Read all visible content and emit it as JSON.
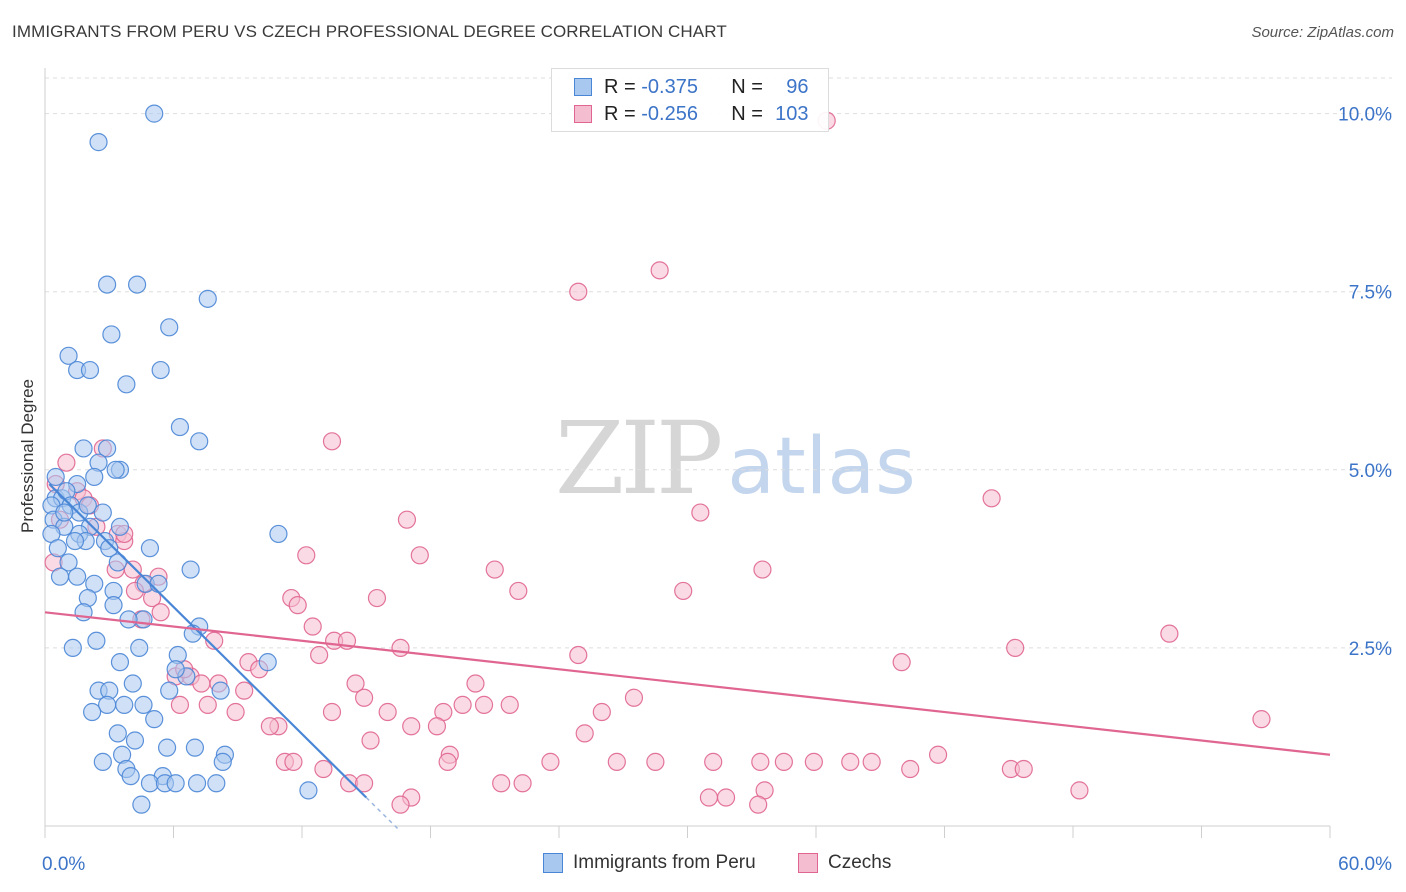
{
  "title": "IMMIGRANTS FROM PERU VS CZECH PROFESSIONAL DEGREE CORRELATION CHART",
  "source": "Source: ZipAtlas.com",
  "watermark": {
    "zip": "ZIP",
    "atlas": "atlas"
  },
  "legend": {
    "r_label": "R =",
    "n_label": "N =",
    "rows": [
      {
        "r": "-0.375",
        "n": "96"
      },
      {
        "r": "-0.256",
        "n": "103"
      }
    ]
  },
  "chart_data": {
    "type": "scatter",
    "title": "IMMIGRANTS FROM PERU VS CZECH PROFESSIONAL DEGREE CORRELATION CHART",
    "xlabel": "",
    "ylabel": "Professional Degree",
    "xlim": [
      0,
      60
    ],
    "ylim": [
      0,
      10.5
    ],
    "x_tick_labels": [
      "0.0%",
      "60.0%"
    ],
    "y_ticks": [
      2.5,
      5.0,
      7.5,
      10.0
    ],
    "y_tick_labels": [
      "2.5%",
      "5.0%",
      "7.5%",
      "10.0%"
    ],
    "grid": true,
    "colors": {
      "peru": "#4a86d6",
      "peru_fill": "#a9c8f0",
      "czech": "#e06590",
      "czech_fill": "#f5bed0"
    },
    "series": [
      {
        "name": "Immigrants from Peru",
        "r": -0.375,
        "n": 96,
        "trend": {
          "x0": 0.2,
          "y0": 4.8,
          "x1": 15.0,
          "y1": 0.4,
          "dash_to_x": 16.5
        },
        "points": [
          [
            5.1,
            10.0
          ],
          [
            2.5,
            9.6
          ],
          [
            2.9,
            7.6
          ],
          [
            4.3,
            7.6
          ],
          [
            7.6,
            7.4
          ],
          [
            3.1,
            6.9
          ],
          [
            5.8,
            7.0
          ],
          [
            1.1,
            6.6
          ],
          [
            1.5,
            6.4
          ],
          [
            2.1,
            6.4
          ],
          [
            3.8,
            6.2
          ],
          [
            5.4,
            6.4
          ],
          [
            6.3,
            5.6
          ],
          [
            7.2,
            5.4
          ],
          [
            1.8,
            5.3
          ],
          [
            2.9,
            5.3
          ],
          [
            3.5,
            5.0
          ],
          [
            2.5,
            5.1
          ],
          [
            2.3,
            4.9
          ],
          [
            1.5,
            4.8
          ],
          [
            0.5,
            4.6
          ],
          [
            0.8,
            4.6
          ],
          [
            1.0,
            4.7
          ],
          [
            0.3,
            4.5
          ],
          [
            1.2,
            4.5
          ],
          [
            0.4,
            4.3
          ],
          [
            1.6,
            4.4
          ],
          [
            2.0,
            4.5
          ],
          [
            2.1,
            4.2
          ],
          [
            0.9,
            4.2
          ],
          [
            1.6,
            4.1
          ],
          [
            0.3,
            4.1
          ],
          [
            1.9,
            4.0
          ],
          [
            2.8,
            4.0
          ],
          [
            3.5,
            4.2
          ],
          [
            3.0,
            3.9
          ],
          [
            4.9,
            3.9
          ],
          [
            1.1,
            3.7
          ],
          [
            3.4,
            3.7
          ],
          [
            6.8,
            3.6
          ],
          [
            0.7,
            3.5
          ],
          [
            1.5,
            3.5
          ],
          [
            2.3,
            3.4
          ],
          [
            3.2,
            3.3
          ],
          [
            4.7,
            3.4
          ],
          [
            3.2,
            3.1
          ],
          [
            10.9,
            4.1
          ],
          [
            4.6,
            2.9
          ],
          [
            7.2,
            2.8
          ],
          [
            2.4,
            2.6
          ],
          [
            4.4,
            2.5
          ],
          [
            6.2,
            2.4
          ],
          [
            3.5,
            2.3
          ],
          [
            6.6,
            2.1
          ],
          [
            10.4,
            2.3
          ],
          [
            2.5,
            1.9
          ],
          [
            3.0,
            1.9
          ],
          [
            5.8,
            1.9
          ],
          [
            8.2,
            1.9
          ],
          [
            2.9,
            1.7
          ],
          [
            3.7,
            1.7
          ],
          [
            4.6,
            1.7
          ],
          [
            5.1,
            1.5
          ],
          [
            3.4,
            1.3
          ],
          [
            7.0,
            1.1
          ],
          [
            5.7,
            1.1
          ],
          [
            3.6,
            1.0
          ],
          [
            8.4,
            1.0
          ],
          [
            2.7,
            0.9
          ],
          [
            3.8,
            0.8
          ],
          [
            8.3,
            0.9
          ],
          [
            4.0,
            0.7
          ],
          [
            5.5,
            0.7
          ],
          [
            4.9,
            0.6
          ],
          [
            5.6,
            0.6
          ],
          [
            6.1,
            0.6
          ],
          [
            7.1,
            0.6
          ],
          [
            8.0,
            0.6
          ],
          [
            12.3,
            0.5
          ],
          [
            4.5,
            0.3
          ],
          [
            0.5,
            4.9
          ],
          [
            0.9,
            4.4
          ],
          [
            2.0,
            3.2
          ],
          [
            3.9,
            2.9
          ],
          [
            6.1,
            2.2
          ],
          [
            1.3,
            2.5
          ],
          [
            1.4,
            4.0
          ],
          [
            2.7,
            4.4
          ],
          [
            4.1,
            2.0
          ],
          [
            1.8,
            3.0
          ],
          [
            3.3,
            5.0
          ],
          [
            0.6,
            3.9
          ],
          [
            2.2,
            1.6
          ],
          [
            4.2,
            1.2
          ],
          [
            6.9,
            2.7
          ],
          [
            5.3,
            3.4
          ]
        ]
      },
      {
        "name": "Czechs",
        "r": -0.256,
        "n": 103,
        "trend": {
          "x0": 0,
          "y0": 3.0,
          "x1": 60,
          "y1": 1.0
        },
        "points": [
          [
            36.5,
            9.9
          ],
          [
            28.7,
            7.8
          ],
          [
            24.9,
            7.5
          ],
          [
            13.4,
            5.4
          ],
          [
            1.0,
            5.1
          ],
          [
            2.7,
            5.3
          ],
          [
            0.5,
            4.8
          ],
          [
            1.5,
            4.7
          ],
          [
            1.8,
            4.6
          ],
          [
            2.1,
            4.5
          ],
          [
            0.7,
            4.3
          ],
          [
            2.4,
            4.2
          ],
          [
            3.4,
            4.1
          ],
          [
            3.7,
            4.0
          ],
          [
            0.4,
            3.7
          ],
          [
            3.3,
            3.6
          ],
          [
            4.1,
            3.6
          ],
          [
            5.3,
            3.5
          ],
          [
            4.6,
            3.4
          ],
          [
            4.2,
            3.3
          ],
          [
            5.0,
            3.2
          ],
          [
            5.4,
            3.0
          ],
          [
            12.2,
            3.8
          ],
          [
            17.5,
            3.8
          ],
          [
            16.9,
            4.3
          ],
          [
            30.6,
            4.4
          ],
          [
            44.2,
            4.6
          ],
          [
            21.0,
            3.6
          ],
          [
            33.5,
            3.6
          ],
          [
            11.5,
            3.2
          ],
          [
            15.5,
            3.2
          ],
          [
            11.8,
            3.1
          ],
          [
            22.1,
            3.3
          ],
          [
            29.8,
            3.3
          ],
          [
            13.5,
            2.6
          ],
          [
            14.1,
            2.6
          ],
          [
            16.6,
            2.5
          ],
          [
            7.9,
            2.6
          ],
          [
            9.5,
            2.3
          ],
          [
            10.0,
            2.2
          ],
          [
            12.8,
            2.4
          ],
          [
            24.9,
            2.4
          ],
          [
            40.0,
            2.3
          ],
          [
            45.3,
            2.5
          ],
          [
            52.5,
            2.7
          ],
          [
            6.1,
            2.1
          ],
          [
            6.8,
            2.1
          ],
          [
            8.1,
            2.0
          ],
          [
            7.3,
            2.0
          ],
          [
            9.3,
            1.9
          ],
          [
            14.5,
            2.0
          ],
          [
            20.1,
            2.0
          ],
          [
            14.9,
            1.8
          ],
          [
            13.4,
            1.6
          ],
          [
            6.3,
            1.7
          ],
          [
            7.6,
            1.7
          ],
          [
            8.9,
            1.6
          ],
          [
            16.0,
            1.6
          ],
          [
            18.6,
            1.6
          ],
          [
            19.5,
            1.7
          ],
          [
            20.5,
            1.7
          ],
          [
            21.7,
            1.7
          ],
          [
            26.0,
            1.6
          ],
          [
            27.5,
            1.8
          ],
          [
            10.9,
            1.4
          ],
          [
            17.1,
            1.4
          ],
          [
            18.3,
            1.4
          ],
          [
            25.2,
            1.3
          ],
          [
            56.8,
            1.5
          ],
          [
            15.2,
            1.2
          ],
          [
            18.9,
            1.0
          ],
          [
            11.2,
            0.9
          ],
          [
            11.6,
            0.9
          ],
          [
            18.8,
            0.9
          ],
          [
            23.6,
            0.9
          ],
          [
            26.7,
            0.9
          ],
          [
            28.5,
            0.9
          ],
          [
            31.2,
            0.9
          ],
          [
            33.4,
            0.9
          ],
          [
            34.5,
            0.9
          ],
          [
            35.9,
            0.9
          ],
          [
            37.6,
            0.9
          ],
          [
            38.6,
            0.9
          ],
          [
            40.4,
            0.8
          ],
          [
            41.7,
            1.0
          ],
          [
            45.1,
            0.8
          ],
          [
            45.7,
            0.8
          ],
          [
            13.0,
            0.8
          ],
          [
            14.2,
            0.6
          ],
          [
            14.9,
            0.6
          ],
          [
            17.1,
            0.4
          ],
          [
            21.3,
            0.6
          ],
          [
            22.3,
            0.6
          ],
          [
            31.0,
            0.4
          ],
          [
            31.8,
            0.4
          ],
          [
            33.6,
            0.5
          ],
          [
            33.3,
            0.3
          ],
          [
            16.6,
            0.3
          ],
          [
            48.3,
            0.5
          ],
          [
            3.7,
            4.1
          ],
          [
            4.5,
            2.9
          ],
          [
            12.5,
            2.8
          ],
          [
            10.5,
            1.4
          ],
          [
            6.5,
            2.2
          ]
        ]
      }
    ]
  }
}
